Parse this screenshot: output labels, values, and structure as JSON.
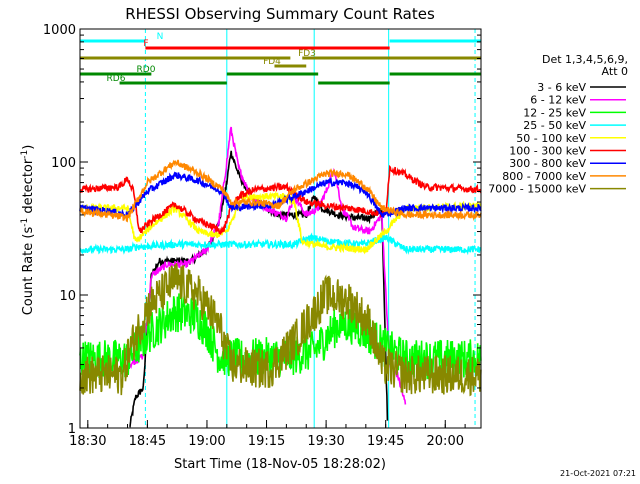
{
  "chart_data": {
    "type": "line",
    "title": "RHESSI Observing Summary Count Rates",
    "xlabel": "Start Time (18-Nov-05 18:28:02)",
    "ylabel": "Count Rate (s⁻¹ detector⁻¹)",
    "ylabel_parts": {
      "main": "Count Rate (s",
      "sup1": "-1",
      "mid": " detector",
      "sup2": "-1",
      "close": ")"
    },
    "yscale": "log",
    "ylim": [
      1,
      1000
    ],
    "xlim": [
      "18:28:02",
      "20:09:00"
    ],
    "xticks": [
      "18:30",
      "18:45",
      "19:00",
      "19:15",
      "19:30",
      "19:45",
      "20:00"
    ],
    "yticks": [
      1,
      10,
      100,
      1000
    ],
    "ytick_labels": [
      "1",
      "10",
      "100",
      "1000"
    ],
    "legend_header": [
      "Det 1,3,4,5,6,9,",
      "Att 0"
    ],
    "legend_position": "right",
    "footer": "21-Oct-2021 07:21",
    "series": [
      {
        "name": "3 - 6 keV",
        "color": "#000000",
        "points": [
          [
            "18:40:30",
            1.0
          ],
          [
            "18:42:00",
            1.7
          ],
          [
            "18:44:00",
            2.0
          ],
          [
            "18:45:00",
            6.0
          ],
          [
            "18:46:00",
            14.0
          ],
          [
            "18:48:00",
            18.0
          ],
          [
            "18:52:00",
            18.0
          ],
          [
            "18:56:00",
            18.0
          ],
          [
            "19:00:00",
            22.0
          ],
          [
            "19:03:00",
            35.0
          ],
          [
            "19:05:00",
            70.0
          ],
          [
            "19:06:00",
            120.0
          ],
          [
            "19:08:00",
            80.0
          ],
          [
            "19:11:00",
            55.0
          ],
          [
            "19:15:00",
            45.0
          ],
          [
            "19:18:00",
            40.0
          ],
          [
            "19:21:00",
            40.0
          ],
          [
            "19:25:00",
            40.0
          ],
          [
            "19:27:00",
            55.0
          ],
          [
            "19:29:00",
            45.0
          ],
          [
            "19:33:00",
            40.0
          ],
          [
            "19:37:00",
            38.0
          ],
          [
            "19:41:00",
            38.0
          ],
          [
            "19:44:00",
            45.0
          ],
          [
            "19:45:30",
            1.0
          ]
        ]
      },
      {
        "name": "6 - 12 keV",
        "color": "#ff00ff",
        "points": [
          [
            "18:40:30",
            3.0
          ],
          [
            "18:44:00",
            3.5
          ],
          [
            "18:46:00",
            14.0
          ],
          [
            "18:50:00",
            17.0
          ],
          [
            "18:55:00",
            17.0
          ],
          [
            "19:00:00",
            22.0
          ],
          [
            "19:03:00",
            35.0
          ],
          [
            "19:05:00",
            100.0
          ],
          [
            "19:06:00",
            180.0
          ],
          [
            "19:08:00",
            90.0
          ],
          [
            "19:11:00",
            55.0
          ],
          [
            "19:15:00",
            45.0
          ],
          [
            "19:20:00",
            38.0
          ],
          [
            "19:22:00",
            55.0
          ],
          [
            "19:25:00",
            40.0
          ],
          [
            "19:28:00",
            45.0
          ],
          [
            "19:30:00",
            60.0
          ],
          [
            "19:32:00",
            90.0
          ],
          [
            "19:34:00",
            45.0
          ],
          [
            "19:37:00",
            32.0
          ],
          [
            "19:41:00",
            30.0
          ],
          [
            "19:44:00",
            40.0
          ],
          [
            "19:46:00",
            3.0
          ],
          [
            "19:48:00",
            2.5
          ],
          [
            "19:50:00",
            1.5
          ]
        ]
      },
      {
        "name": "12 - 25 keV",
        "color": "#00ff00",
        "points": [
          [
            "18:28:02",
            3.3
          ],
          [
            "18:40:00",
            3.3
          ],
          [
            "18:41:00",
            3.6
          ],
          [
            "18:45:00",
            5.0
          ],
          [
            "18:52:00",
            7.5
          ],
          [
            "18:57:00",
            7.0
          ],
          [
            "19:00:00",
            5.5
          ],
          [
            "19:03:00",
            3.5
          ],
          [
            "19:09:00",
            3.3
          ],
          [
            "19:14:00",
            3.4
          ],
          [
            "19:20:00",
            3.4
          ],
          [
            "19:27:00",
            3.8
          ],
          [
            "19:33:00",
            6.0
          ],
          [
            "19:37:00",
            6.0
          ],
          [
            "19:41:00",
            5.0
          ],
          [
            "19:45:00",
            4.0
          ],
          [
            "19:50:00",
            3.3
          ],
          [
            "20:09:00",
            3.3
          ]
        ]
      },
      {
        "name": "25 - 50 keV",
        "color": "#00ffff",
        "points": [
          [
            "18:28:02",
            22.0
          ],
          [
            "18:40:00",
            22.0
          ],
          [
            "18:42:00",
            23.0
          ],
          [
            "18:52:00",
            24.0
          ],
          [
            "19:05:00",
            24.0
          ],
          [
            "19:09:00",
            24.0
          ],
          [
            "19:14:00",
            24.0
          ],
          [
            "19:22:00",
            24.0
          ],
          [
            "19:26:00",
            27.0
          ],
          [
            "19:32:00",
            25.0
          ],
          [
            "19:39:00",
            24.0
          ],
          [
            "19:45:00",
            27.0
          ],
          [
            "19:50:00",
            22.0
          ],
          [
            "20:09:00",
            22.0
          ]
        ]
      },
      {
        "name": "50 - 100 keV",
        "color": "#ffff00",
        "points": [
          [
            "18:28:02",
            45.0
          ],
          [
            "18:40:00",
            45.0
          ],
          [
            "18:42:00",
            25.0
          ],
          [
            "18:46:00",
            33.0
          ],
          [
            "18:52:00",
            45.0
          ],
          [
            "18:58:00",
            30.0
          ],
          [
            "19:02:00",
            28.0
          ],
          [
            "19:05:00",
            30.0
          ],
          [
            "19:09:00",
            55.0
          ],
          [
            "19:20:00",
            55.0
          ],
          [
            "19:22:00",
            50.0
          ],
          [
            "19:24:00",
            25.0
          ],
          [
            "19:30:00",
            23.0
          ],
          [
            "19:40:00",
            22.0
          ],
          [
            "19:45:00",
            30.0
          ],
          [
            "19:50:00",
            45.0
          ],
          [
            "20:09:00",
            47.0
          ]
        ]
      },
      {
        "name": "100 - 300 keV",
        "color": "#ff0000",
        "points": [
          [
            "18:28:02",
            62.0
          ],
          [
            "18:38:00",
            65.0
          ],
          [
            "18:40:00",
            75.0
          ],
          [
            "18:41:30",
            60.0
          ],
          [
            "18:43:00",
            30.0
          ],
          [
            "18:46:00",
            36.0
          ],
          [
            "18:52:00",
            48.0
          ],
          [
            "18:58:00",
            36.0
          ],
          [
            "19:04:00",
            30.0
          ],
          [
            "19:06:00",
            44.0
          ],
          [
            "19:08:00",
            55.0
          ],
          [
            "19:12:00",
            62.0
          ],
          [
            "19:20:00",
            65.0
          ],
          [
            "19:25:00",
            50.0
          ],
          [
            "19:30:00",
            47.0
          ],
          [
            "19:38:00",
            44.0
          ],
          [
            "19:45:00",
            40.0
          ],
          [
            "19:46:00",
            90.0
          ],
          [
            "19:50:00",
            80.0
          ],
          [
            "19:55:00",
            65.0
          ],
          [
            "20:09:00",
            62.0
          ]
        ]
      },
      {
        "name": "300 - 800 keV",
        "color": "#0000ff",
        "points": [
          [
            "18:28:02",
            45.0
          ],
          [
            "18:35:00",
            43.0
          ],
          [
            "18:40:00",
            40.0
          ],
          [
            "18:45:00",
            60.0
          ],
          [
            "18:52:00",
            80.0
          ],
          [
            "18:58:00",
            72.0
          ],
          [
            "19:04:00",
            60.0
          ],
          [
            "19:06:00",
            45.0
          ],
          [
            "19:12:00",
            47.0
          ],
          [
            "19:16:00",
            47.0
          ],
          [
            "19:22:00",
            55.0
          ],
          [
            "19:30:00",
            70.0
          ],
          [
            "19:35:00",
            70.0
          ],
          [
            "19:40:00",
            60.0
          ],
          [
            "19:44:00",
            40.0
          ],
          [
            "19:50:00",
            45.0
          ],
          [
            "20:09:00",
            45.0
          ]
        ]
      },
      {
        "name": "800 - 7000 keV",
        "color": "#ff8800",
        "points": [
          [
            "18:28:02",
            43.0
          ],
          [
            "18:35:00",
            40.0
          ],
          [
            "18:40:00",
            38.0
          ],
          [
            "18:45:00",
            70.0
          ],
          [
            "18:52:00",
            100.0
          ],
          [
            "18:58:00",
            82.0
          ],
          [
            "19:04:00",
            62.0
          ],
          [
            "19:06:00",
            50.0
          ],
          [
            "19:12:00",
            50.0
          ],
          [
            "19:18:00",
            47.0
          ],
          [
            "19:22:00",
            62.0
          ],
          [
            "19:30:00",
            82.0
          ],
          [
            "19:35:00",
            82.0
          ],
          [
            "19:40:00",
            65.0
          ],
          [
            "19:44:00",
            45.0
          ],
          [
            "19:50:00",
            40.0
          ],
          [
            "20:09:00",
            40.0
          ]
        ]
      },
      {
        "name": "7000 - 15000 keV",
        "color": "#888800",
        "points": [
          [
            "18:28:02",
            2.5
          ],
          [
            "18:39:00",
            2.5
          ],
          [
            "18:40:00",
            3.5
          ],
          [
            "18:45:00",
            8.0
          ],
          [
            "18:52:00",
            13.0
          ],
          [
            "18:58:00",
            10.0
          ],
          [
            "19:03:00",
            6.0
          ],
          [
            "19:06:00",
            3.0
          ],
          [
            "19:12:00",
            2.8
          ],
          [
            "19:16:00",
            2.8
          ],
          [
            "19:22:00",
            4.5
          ],
          [
            "19:30:00",
            10.0
          ],
          [
            "19:36:00",
            9.0
          ],
          [
            "19:41:00",
            6.0
          ],
          [
            "19:44:00",
            3.0
          ],
          [
            "19:50:00",
            2.5
          ],
          [
            "20:09:00",
            2.5
          ]
        ]
      }
    ],
    "flags": [
      {
        "label": "N",
        "color": "#00ffff",
        "segments": [
          [
            "18:28:02",
            "18:44:30"
          ],
          [
            "19:46:00",
            "20:09:00"
          ]
        ]
      },
      {
        "label": "F",
        "color": "#ff0000",
        "segments": [
          [
            "18:44:30",
            "19:46:00"
          ]
        ]
      },
      {
        "label": "FD3",
        "color": "#888800",
        "segments": [
          [
            "18:28:02",
            "19:21:00"
          ],
          [
            "19:24:00",
            "20:09:00"
          ]
        ]
      },
      {
        "label": "FD4",
        "color": "#888800",
        "segments": [
          [
            "19:17:00",
            "19:25:00"
          ]
        ]
      },
      {
        "label": "RD0",
        "color": "#008800",
        "segments": [
          [
            "18:28:02",
            "18:46:00"
          ],
          [
            "19:05:00",
            "19:28:00"
          ],
          [
            "19:46:00",
            "20:09:00"
          ]
        ]
      },
      {
        "label": "RD6",
        "color": "#008800",
        "segments": [
          [
            "18:38:00",
            "19:05:00"
          ],
          [
            "19:28:00",
            "19:46:00"
          ]
        ]
      }
    ],
    "cyan_markers": [
      "18:28:02",
      "18:44:30",
      "19:05:00",
      "19:27:00",
      "19:45:45",
      "20:07:30"
    ],
    "grid": false
  }
}
